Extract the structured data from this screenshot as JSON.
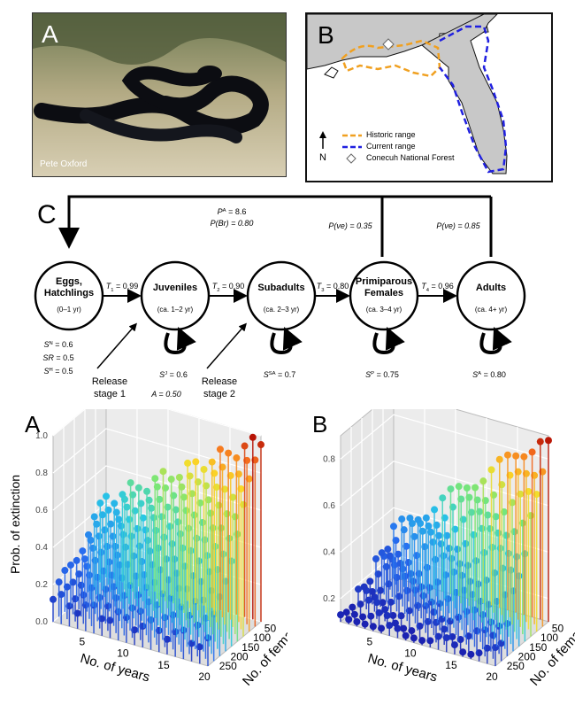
{
  "panel_top": {
    "photo": {
      "letter": "A",
      "credit": "Pete Oxford"
    },
    "map": {
      "letter": "B",
      "legend": {
        "historic": "Historic range",
        "current": "Current range",
        "forest": "Conecuh National Forest"
      },
      "north": "N",
      "colors": {
        "historic": "#f0a020",
        "current": "#2020e0",
        "land": "#c8c8c8"
      }
    }
  },
  "diagram": {
    "letter": "C",
    "stages": [
      {
        "name_lines": [
          "Eggs,",
          "Hatchlings"
        ],
        "age": "(0–1 yr)"
      },
      {
        "name_lines": [
          "Juveniles"
        ],
        "age": "(ca. 1–2 yr)"
      },
      {
        "name_lines": [
          "Subadults"
        ],
        "age": "(ca. 2–3 yr)"
      },
      {
        "name_lines": [
          "Primiparous",
          "Females"
        ],
        "age": "(ca. 3–4 yr)"
      },
      {
        "name_lines": [
          "Adults"
        ],
        "age": "(ca. 4+ yr)"
      }
    ],
    "transitions": [
      {
        "sym": "T",
        "sub": "1",
        "val": " = 0.99"
      },
      {
        "sym": "T",
        "sub": "2",
        "val": " = 0.90"
      },
      {
        "sym": "T",
        "sub": "3",
        "val": " = 0.80"
      },
      {
        "sym": "T",
        "sub": "4",
        "val": " = 0.96"
      }
    ],
    "fecundity": {
      "pa_sym": "P",
      "pa_sup": "A",
      "pa_val": " = 8.6",
      "pbr": "P(Br) = 0.80"
    },
    "pve": [
      "P(ve) = 0.35",
      "P(ve) = 0.85"
    ],
    "egg_survival": [
      {
        "sym": "S",
        "sup": "N",
        "val": " = 0.6"
      },
      {
        "sym": "SR",
        "sup": "",
        "val": " = 0.5"
      },
      {
        "sym": "S",
        "sup": "H",
        "val": " = 0.5"
      }
    ],
    "stay": [
      {
        "sym": "S",
        "sup": "J",
        "val": " = 0.6"
      },
      {
        "sym": "S",
        "sup": "SA",
        "val": " = 0.7"
      },
      {
        "sym": "S",
        "sup": "P",
        "val": " = 0.75"
      },
      {
        "sym": "S",
        "sup": "A",
        "val": " = 0.80"
      }
    ],
    "release": [
      [
        "Release",
        "stage 1"
      ],
      [
        "Release",
        "stage 2"
      ]
    ],
    "a_val": "A = 0.50"
  },
  "chart_data": [
    {
      "type": "scatter",
      "letter": "A",
      "ylabel": "Prob. of extinction",
      "xlabel": "No. of years",
      "zlabel": "No. of females",
      "z_ticks": [
        "0.0",
        "0.2",
        "0.4",
        "0.6",
        "0.8",
        "1.0"
      ],
      "x_ticks": [
        "5",
        "10",
        "15",
        "20"
      ],
      "f_ticks": [
        "50",
        "100",
        "150",
        "200",
        "250"
      ],
      "ylim": [
        0,
        1
      ]
    },
    {
      "type": "scatter",
      "letter": "B",
      "ylabel": "",
      "xlabel": "No. of years",
      "zlabel": "No. of females",
      "z_ticks": [
        "0.2",
        "0.4",
        "0.6",
        "0.8"
      ],
      "x_ticks": [
        "5",
        "10",
        "15",
        "20"
      ],
      "f_ticks": [
        "50",
        "100",
        "150",
        "200",
        "250"
      ],
      "ylim": [
        0.1,
        0.9
      ]
    }
  ]
}
